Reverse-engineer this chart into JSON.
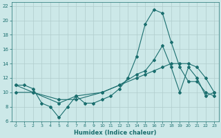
{
  "xlabel": "Humidex (Indice chaleur)",
  "bg_color": "#cce8e8",
  "grid_color": "#b0cccc",
  "line_color": "#1a6e6e",
  "xlim": [
    -0.5,
    23.5
  ],
  "ylim": [
    6,
    22.5
  ],
  "xticks": [
    0,
    1,
    2,
    3,
    4,
    5,
    6,
    7,
    8,
    9,
    10,
    11,
    12,
    13,
    14,
    15,
    16,
    17,
    18,
    19,
    20,
    21,
    22,
    23
  ],
  "yticks": [
    6,
    8,
    10,
    12,
    14,
    16,
    18,
    20,
    22
  ],
  "line1_x": [
    0,
    1,
    2,
    3,
    4,
    5,
    6,
    7,
    8,
    9,
    10,
    11,
    12,
    13,
    14,
    15,
    16,
    17,
    18,
    19,
    20,
    21,
    22,
    23
  ],
  "line1_y": [
    11,
    11,
    10.5,
    8.5,
    8,
    6.5,
    8,
    9.5,
    8.5,
    8.5,
    9.0,
    9.5,
    10.5,
    12.0,
    15.0,
    19.5,
    21.5,
    21.0,
    17.0,
    13.5,
    11.5,
    11.5,
    10.0,
    9.5
  ],
  "line2_x": [
    0,
    2,
    5,
    7,
    10,
    12,
    14,
    15,
    16,
    17,
    18,
    19,
    20,
    21,
    22,
    23
  ],
  "line2_y": [
    10,
    10,
    9,
    9,
    10,
    11,
    12.5,
    13,
    14.5,
    16.5,
    13.5,
    10,
    13.5,
    12,
    9.5,
    10
  ],
  "line3_x": [
    0,
    2,
    5,
    7,
    10,
    12,
    14,
    15,
    16,
    17,
    18,
    19,
    20,
    21,
    22,
    23
  ],
  "line3_y": [
    11,
    10,
    8.5,
    9.5,
    10,
    11,
    12,
    12.5,
    13,
    13.5,
    14,
    14,
    14,
    13.5,
    12,
    10
  ]
}
